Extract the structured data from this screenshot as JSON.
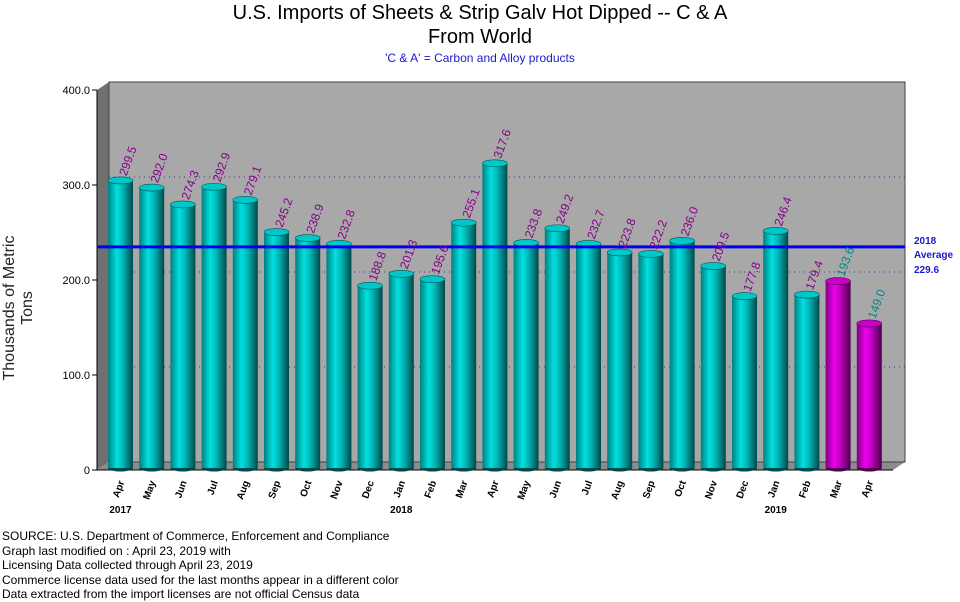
{
  "chart_data": {
    "type": "bar",
    "title": "U.S. Imports of Sheets & Strip Galv Hot Dipped -- C & A",
    "title_line2": "From World",
    "subtitle": "'C & A' = Carbon and Alloy products",
    "ylabel": "Thousands of Metric Tons",
    "xlabel": "",
    "ylim": [
      0,
      400
    ],
    "yticks": [
      "0",
      "100.0",
      "200.0",
      "300.0",
      "400.0"
    ],
    "grid": true,
    "categories": [
      "Apr",
      "May",
      "Jun",
      "Jul",
      "Aug",
      "Sep",
      "Oct",
      "Nov",
      "Dec",
      "Jan",
      "Feb",
      "Mar",
      "Apr",
      "May",
      "Jun",
      "Jul",
      "Aug",
      "Sep",
      "Oct",
      "Nov",
      "Dec",
      "Jan",
      "Feb",
      "Mar",
      "Apr"
    ],
    "values": [
      299.5,
      292.0,
      274.3,
      292.9,
      279.1,
      245.2,
      238.9,
      232.8,
      188.8,
      201.3,
      195.6,
      255.1,
      317.6,
      233.8,
      249.2,
      232.7,
      223.8,
      222.2,
      236.0,
      209.5,
      177.8,
      246.4,
      179.4,
      193.6,
      149.0
    ],
    "value_labels": [
      "299.5",
      "292.0",
      "274.3",
      "292.9",
      "279.1",
      "245.2",
      "238.9",
      "232.8",
      "188.8",
      "201.3",
      "195.6",
      "255.1",
      "317.6",
      "233.8",
      "249.2",
      "232.7",
      "223.8",
      "222.2",
      "236.0",
      "209.5",
      "177.8",
      "246.4",
      "179.4",
      "193.6",
      "149.0"
    ],
    "licensing_data": [
      false,
      false,
      false,
      false,
      false,
      false,
      false,
      false,
      false,
      false,
      false,
      false,
      false,
      false,
      false,
      false,
      false,
      false,
      false,
      false,
      false,
      false,
      false,
      true,
      true
    ],
    "year_labels": [
      {
        "index": 0,
        "label": "2017"
      },
      {
        "index": 9,
        "label": "2018"
      },
      {
        "index": 21,
        "label": "2019"
      }
    ],
    "average": {
      "value": 229.6,
      "line1": "2018",
      "line2": "Average",
      "line3": "229.6"
    },
    "colors": {
      "census_bar": "#00c8c8",
      "license_bar": "#cc00cc",
      "census_label": "#880088",
      "license_label": "#008888",
      "average_line": "#0000ee",
      "plot_bg": "#a8a8a8"
    }
  },
  "footer": [
    "SOURCE: U.S. Department of Commerce, Enforcement and Compliance",
    "Graph last modified on : April 23, 2019     with",
    "Licensing Data collected through April 23, 2019",
    "Commerce license data used for the last months appear in a different color",
    "Data extracted from the import licenses are not official Census data"
  ]
}
